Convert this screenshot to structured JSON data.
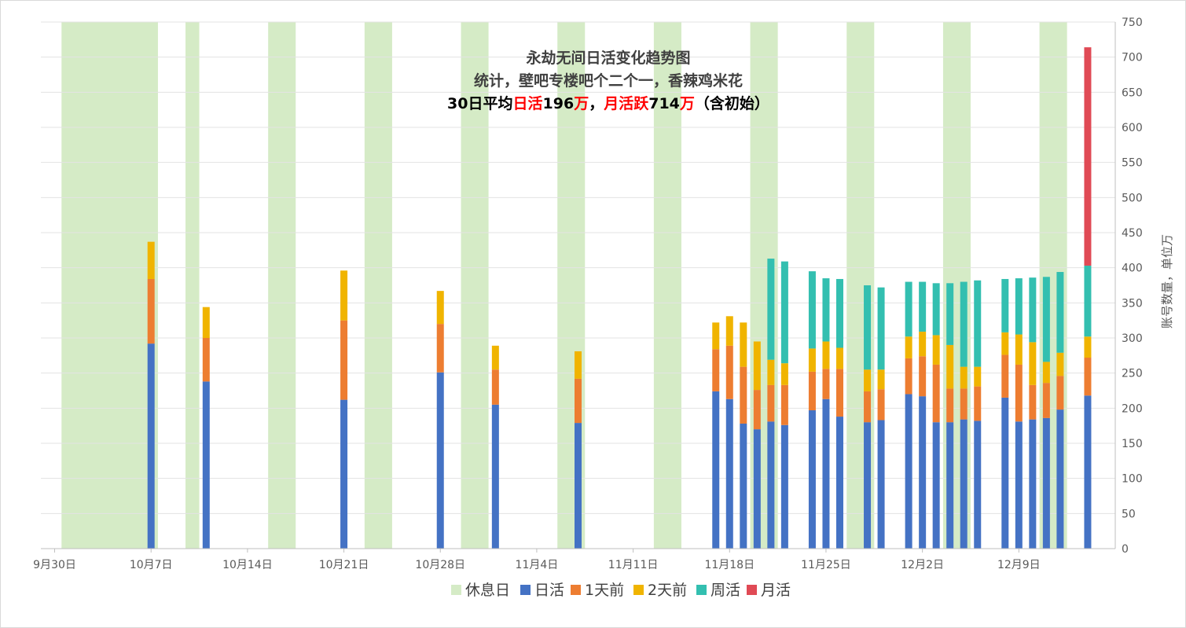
{
  "chart_data": {
    "type": "bar",
    "title_lines": [
      [
        {
          "text": "永劫无间日活变化趋势图",
          "color": "#404040"
        }
      ],
      [
        {
          "text": "统计，壁吧专楼吧个二个一，香辣鸡米花",
          "color": "#404040"
        }
      ],
      [
        {
          "text": "30日平均",
          "color": "#000000"
        },
        {
          "text": "日活",
          "color": "#ff0000"
        },
        {
          "text": "196",
          "color": "#000000"
        },
        {
          "text": "万",
          "color": "#ff0000"
        },
        {
          "text": "，",
          "color": "#000000"
        },
        {
          "text": "月活跃",
          "color": "#ff0000"
        },
        {
          "text": "714",
          "color": "#000000"
        },
        {
          "text": "万",
          "color": "#ff0000"
        },
        {
          "text": "（含初始）",
          "color": "#000000"
        }
      ]
    ],
    "ylabel": "账号数量，单位万",
    "ylim": [
      0,
      750
    ],
    "y_ticks": [
      0,
      50,
      100,
      150,
      200,
      250,
      300,
      350,
      400,
      450,
      500,
      550,
      600,
      650,
      700,
      750
    ],
    "x_domain": [
      "2021-09-29",
      "2021-12-16"
    ],
    "x_tick_labels": [
      {
        "date": "2021-09-30",
        "label": "9月30日"
      },
      {
        "date": "2021-10-07",
        "label": "10月7日"
      },
      {
        "date": "2021-10-14",
        "label": "10月14日"
      },
      {
        "date": "2021-10-21",
        "label": "10月21日"
      },
      {
        "date": "2021-10-28",
        "label": "10月28日"
      },
      {
        "date": "2021-11-04",
        "label": "11月4日"
      },
      {
        "date": "2021-11-11",
        "label": "11月11日"
      },
      {
        "date": "2021-11-18",
        "label": "11月18日"
      },
      {
        "date": "2021-11-25",
        "label": "11月25日"
      },
      {
        "date": "2021-12-02",
        "label": "12月2日"
      },
      {
        "date": "2021-12-09",
        "label": "12月9日"
      }
    ],
    "rest_periods": [
      [
        "2021-10-01",
        "2021-10-07"
      ],
      [
        "2021-10-10",
        "2021-10-10"
      ],
      [
        "2021-10-16",
        "2021-10-17"
      ],
      [
        "2021-10-23",
        "2021-10-24"
      ],
      [
        "2021-10-30",
        "2021-10-31"
      ],
      [
        "2021-11-06",
        "2021-11-07"
      ],
      [
        "2021-11-13",
        "2021-11-14"
      ],
      [
        "2021-11-20",
        "2021-11-21"
      ],
      [
        "2021-11-27",
        "2021-11-28"
      ],
      [
        "2021-12-04",
        "2021-12-05"
      ],
      [
        "2021-12-11",
        "2021-12-12"
      ]
    ],
    "series": [
      {
        "name": "日活",
        "color": "#4472c4"
      },
      {
        "name": "1天前",
        "color": "#ed7d31"
      },
      {
        "name": "2天前",
        "color": "#f0b400"
      },
      {
        "name": "周活",
        "color": "#33bfb0"
      },
      {
        "name": "月活",
        "color": "#e04a55"
      }
    ],
    "rest_legend": {
      "name": "休息日",
      "color": "#d5ebc6"
    },
    "points": [
      {
        "date": "2021-10-07",
        "values": [
          292,
          384,
          437,
          0,
          0
        ]
      },
      {
        "date": "2021-10-11",
        "values": [
          238,
          300,
          344,
          0,
          0
        ]
      },
      {
        "date": "2021-10-21",
        "values": [
          212,
          325,
          396,
          0,
          0
        ]
      },
      {
        "date": "2021-10-28",
        "values": [
          251,
          320,
          367,
          0,
          0
        ]
      },
      {
        "date": "2021-11-01",
        "values": [
          205,
          255,
          289,
          0,
          0
        ]
      },
      {
        "date": "2021-11-07",
        "values": [
          179,
          242,
          281,
          0,
          0
        ]
      },
      {
        "date": "2021-11-17",
        "values": [
          224,
          284,
          322,
          0,
          0
        ]
      },
      {
        "date": "2021-11-18",
        "values": [
          213,
          289,
          331,
          0,
          0
        ]
      },
      {
        "date": "2021-11-19",
        "values": [
          178,
          259,
          322,
          0,
          0
        ]
      },
      {
        "date": "2021-11-20",
        "values": [
          170,
          226,
          295,
          0,
          0
        ]
      },
      {
        "date": "2021-11-21",
        "values": [
          181,
          233,
          269,
          413,
          0
        ]
      },
      {
        "date": "2021-11-22",
        "values": [
          176,
          233,
          264,
          409,
          0
        ]
      },
      {
        "date": "2021-11-24",
        "values": [
          197,
          252,
          285,
          395,
          0
        ]
      },
      {
        "date": "2021-11-25",
        "values": [
          213,
          256,
          295,
          385,
          0
        ]
      },
      {
        "date": "2021-11-26",
        "values": [
          188,
          256,
          286,
          384,
          0
        ]
      },
      {
        "date": "2021-11-28",
        "values": [
          180,
          224,
          255,
          375,
          0
        ]
      },
      {
        "date": "2021-11-29",
        "values": [
          183,
          227,
          255,
          372,
          0
        ]
      },
      {
        "date": "2021-12-01",
        "values": [
          220,
          271,
          302,
          380,
          0
        ]
      },
      {
        "date": "2021-12-02",
        "values": [
          217,
          274,
          309,
          380,
          0
        ]
      },
      {
        "date": "2021-12-03",
        "values": [
          180,
          262,
          304,
          378,
          0
        ]
      },
      {
        "date": "2021-12-04",
        "values": [
          180,
          228,
          290,
          378,
          0
        ]
      },
      {
        "date": "2021-12-05",
        "values": [
          184,
          228,
          259,
          380,
          0
        ]
      },
      {
        "date": "2021-12-06",
        "values": [
          182,
          231,
          259,
          382,
          0
        ]
      },
      {
        "date": "2021-12-08",
        "values": [
          215,
          276,
          308,
          384,
          0
        ]
      },
      {
        "date": "2021-12-09",
        "values": [
          181,
          262,
          305,
          385,
          0
        ]
      },
      {
        "date": "2021-12-10",
        "values": [
          184,
          233,
          294,
          386,
          0
        ]
      },
      {
        "date": "2021-12-11",
        "values": [
          186,
          236,
          266,
          387,
          0
        ]
      },
      {
        "date": "2021-12-12",
        "values": [
          198,
          246,
          279,
          394,
          0
        ]
      },
      {
        "date": "2021-12-14",
        "values": [
          218,
          272,
          302,
          403,
          714
        ]
      }
    ]
  }
}
